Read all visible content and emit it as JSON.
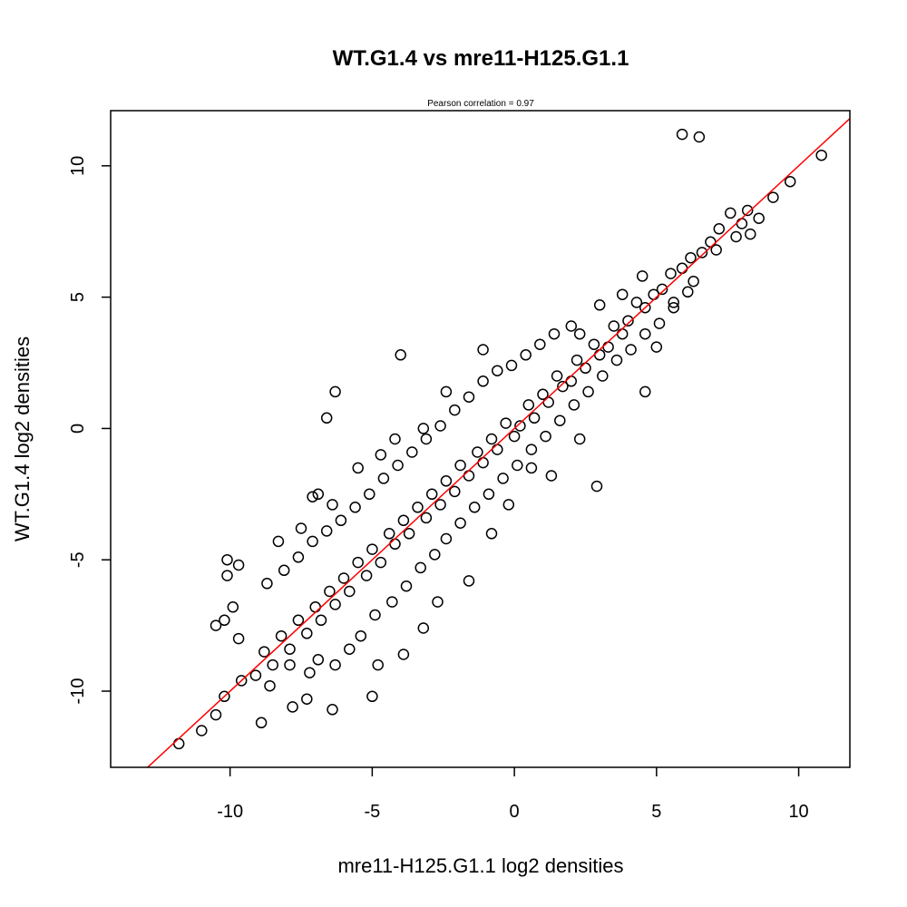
{
  "chart_data": {
    "type": "scatter",
    "title": "WT.G1.4 vs mre11-H125.G1.1",
    "subtitle": "Pearson correlation =  0.97",
    "xlabel": "mre11-H125.G1.1 log2 densities",
    "ylabel": "WT.G1.4 log2 densities",
    "xlim": [
      -14.2,
      11.8
    ],
    "ylim": [
      -12.9,
      12.1
    ],
    "xticks": [
      -10,
      -5,
      0,
      5,
      10
    ],
    "yticks": [
      -10,
      -5,
      0,
      5,
      10
    ],
    "xtick_labels": [
      "-10",
      "-5",
      "0",
      "5",
      "10"
    ],
    "ytick_labels": [
      "-10",
      "-5",
      "0",
      "5",
      "10"
    ],
    "grid": false,
    "point_style": "open-circle",
    "point_color": "#000000",
    "fit_line": {
      "color": "#ff0000",
      "slope": 1.0,
      "intercept": 0.0
    },
    "points": [
      [
        5.9,
        11.2
      ],
      [
        6.5,
        11.1
      ],
      [
        10.8,
        10.4
      ],
      [
        9.7,
        9.4
      ],
      [
        9.1,
        8.8
      ],
      [
        8.6,
        8.0
      ],
      [
        8.2,
        8.3
      ],
      [
        8.0,
        7.8
      ],
      [
        7.6,
        8.2
      ],
      [
        7.2,
        7.6
      ],
      [
        6.9,
        7.1
      ],
      [
        6.6,
        6.7
      ],
      [
        6.2,
        6.5
      ],
      [
        5.9,
        6.1
      ],
      [
        5.5,
        5.9
      ],
      [
        5.2,
        5.3
      ],
      [
        4.9,
        5.1
      ],
      [
        4.6,
        4.6
      ],
      [
        4.3,
        4.8
      ],
      [
        4.0,
        4.1
      ],
      [
        3.8,
        3.6
      ],
      [
        3.5,
        3.9
      ],
      [
        3.3,
        3.1
      ],
      [
        3.0,
        2.8
      ],
      [
        2.8,
        3.2
      ],
      [
        2.5,
        2.3
      ],
      [
        2.2,
        2.6
      ],
      [
        2.0,
        1.8
      ],
      [
        1.7,
        1.6
      ],
      [
        1.5,
        2.0
      ],
      [
        1.2,
        1.0
      ],
      [
        1.0,
        1.3
      ],
      [
        0.7,
        0.4
      ],
      [
        0.5,
        0.9
      ],
      [
        0.2,
        0.1
      ],
      [
        0.0,
        -0.3
      ],
      [
        -0.3,
        0.2
      ],
      [
        -0.6,
        -0.8
      ],
      [
        -0.8,
        -0.4
      ],
      [
        -1.1,
        -1.3
      ],
      [
        -1.3,
        -0.9
      ],
      [
        -1.6,
        -1.8
      ],
      [
        -1.9,
        -1.4
      ],
      [
        -2.1,
        -2.4
      ],
      [
        -2.4,
        -2.0
      ],
      [
        -2.6,
        -2.9
      ],
      [
        -2.9,
        -2.5
      ],
      [
        -3.1,
        -3.4
      ],
      [
        -3.4,
        -3.0
      ],
      [
        -3.7,
        -4.0
      ],
      [
        -3.9,
        -3.5
      ],
      [
        -4.2,
        -4.4
      ],
      [
        -4.4,
        -4.0
      ],
      [
        -4.7,
        -5.1
      ],
      [
        -5.0,
        -4.6
      ],
      [
        -5.2,
        -5.6
      ],
      [
        -5.5,
        -5.1
      ],
      [
        -5.8,
        -6.2
      ],
      [
        -6.0,
        -5.7
      ],
      [
        -6.3,
        -6.7
      ],
      [
        -6.5,
        -6.2
      ],
      [
        -6.8,
        -7.3
      ],
      [
        -7.0,
        -6.8
      ],
      [
        -7.3,
        -7.8
      ],
      [
        -7.6,
        -7.3
      ],
      [
        -7.9,
        -8.4
      ],
      [
        -8.2,
        -7.9
      ],
      [
        -8.5,
        -9.0
      ],
      [
        -8.8,
        -8.5
      ],
      [
        -9.1,
        -9.4
      ],
      [
        -9.6,
        -9.6
      ],
      [
        -10.2,
        -10.2
      ],
      [
        -10.5,
        -10.9
      ],
      [
        -11.0,
        -11.5
      ],
      [
        -11.8,
        -12.0
      ],
      [
        -8.3,
        -4.3
      ],
      [
        -7.5,
        -3.8
      ],
      [
        -7.1,
        -2.6
      ],
      [
        -6.9,
        -2.5
      ],
      [
        -6.4,
        -2.9
      ],
      [
        -5.5,
        -1.5
      ],
      [
        -4.7,
        -1.0
      ],
      [
        -4.2,
        -0.4
      ],
      [
        -4.0,
        2.8
      ],
      [
        -6.3,
        1.4
      ],
      [
        -6.6,
        0.4
      ],
      [
        -3.2,
        0.0
      ],
      [
        -2.4,
        1.4
      ],
      [
        -1.1,
        3.0
      ],
      [
        2.3,
        3.6
      ],
      [
        3.8,
        5.1
      ],
      [
        4.5,
        5.8
      ],
      [
        3.0,
        4.7
      ],
      [
        2.0,
        3.9
      ],
      [
        -10.1,
        -5.0
      ],
      [
        -9.7,
        -5.2
      ],
      [
        -10.1,
        -5.6
      ],
      [
        -9.9,
        -6.8
      ],
      [
        -10.2,
        -7.3
      ],
      [
        -9.7,
        -8.0
      ],
      [
        -10.5,
        -7.5
      ],
      [
        -4.8,
        -9.0
      ],
      [
        -3.9,
        -8.6
      ],
      [
        -3.2,
        -7.6
      ],
      [
        -2.7,
        -6.6
      ],
      [
        -1.6,
        -5.8
      ],
      [
        -0.8,
        -4.0
      ],
      [
        -0.2,
        -2.9
      ],
      [
        0.6,
        -1.5
      ],
      [
        1.3,
        -1.8
      ],
      [
        2.3,
        -0.4
      ],
      [
        2.9,
        -2.2
      ],
      [
        4.6,
        1.4
      ],
      [
        5.0,
        3.1
      ],
      [
        5.6,
        4.6
      ],
      [
        6.3,
        5.6
      ],
      [
        7.1,
        6.8
      ],
      [
        7.8,
        7.3
      ],
      [
        8.3,
        7.4
      ],
      [
        -8.9,
        -11.2
      ],
      [
        -8.6,
        -9.8
      ],
      [
        -7.8,
        -10.6
      ],
      [
        -7.3,
        -10.3
      ],
      [
        -6.4,
        -10.7
      ],
      [
        -5.0,
        -10.2
      ],
      [
        -7.9,
        -9.0
      ],
      [
        -7.2,
        -9.3
      ],
      [
        -6.9,
        -8.8
      ],
      [
        -6.3,
        -9.0
      ],
      [
        -5.8,
        -8.4
      ],
      [
        -5.4,
        -7.9
      ],
      [
        -4.9,
        -7.1
      ],
      [
        -4.3,
        -6.6
      ],
      [
        -3.8,
        -6.0
      ],
      [
        -3.3,
        -5.3
      ],
      [
        -2.8,
        -4.8
      ],
      [
        -2.4,
        -4.2
      ],
      [
        -1.9,
        -3.6
      ],
      [
        -1.4,
        -3.0
      ],
      [
        -0.9,
        -2.5
      ],
      [
        -0.4,
        -1.9
      ],
      [
        0.1,
        -1.4
      ],
      [
        0.6,
        -0.8
      ],
      [
        1.1,
        -0.3
      ],
      [
        1.6,
        0.3
      ],
      [
        2.1,
        0.9
      ],
      [
        2.6,
        1.4
      ],
      [
        3.1,
        2.0
      ],
      [
        3.6,
        2.6
      ],
      [
        4.1,
        3.0
      ],
      [
        4.6,
        3.6
      ],
      [
        5.1,
        4.0
      ],
      [
        5.6,
        4.8
      ],
      [
        6.1,
        5.2
      ],
      [
        -8.7,
        -5.9
      ],
      [
        -8.1,
        -5.4
      ],
      [
        -7.6,
        -4.9
      ],
      [
        -7.1,
        -4.3
      ],
      [
        -6.6,
        -3.9
      ],
      [
        -6.1,
        -3.5
      ],
      [
        -5.6,
        -3.0
      ],
      [
        -5.1,
        -2.5
      ],
      [
        -4.6,
        -1.9
      ],
      [
        -4.1,
        -1.4
      ],
      [
        -3.6,
        -0.9
      ],
      [
        -3.1,
        -0.4
      ],
      [
        -2.6,
        0.1
      ],
      [
        -2.1,
        0.7
      ],
      [
        -1.6,
        1.2
      ],
      [
        -1.1,
        1.8
      ],
      [
        -0.6,
        2.2
      ],
      [
        -0.1,
        2.4
      ],
      [
        0.4,
        2.8
      ],
      [
        0.9,
        3.2
      ],
      [
        1.4,
        3.6
      ]
    ]
  }
}
